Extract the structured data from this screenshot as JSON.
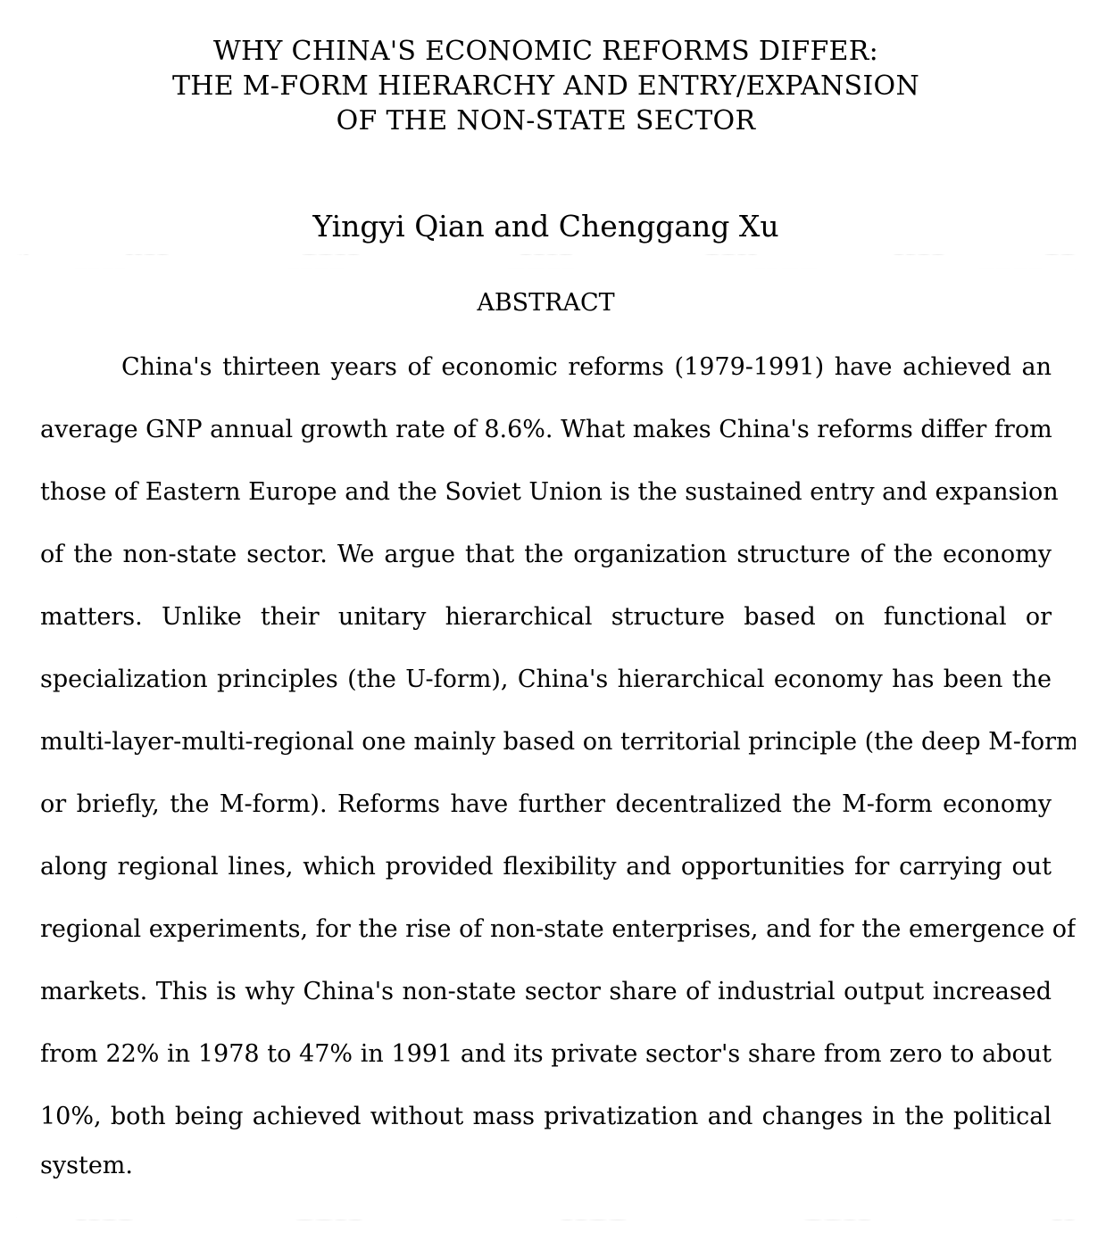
{
  "title_lines": [
    "WHY CHINA'S ECONOMIC REFORMS DIFFER:",
    "THE M-FORM HIERARCHY AND ENTRY/EXPANSION",
    "OF THE NON-STATE SECTOR"
  ],
  "authors": "Yingyi Qian and Chenggang Xu",
  "abstract_heading": "ABSTRACT",
  "abstract_lines": [
    "China's thirteen years of economic reforms (1979-1991) have achieved an",
    "average GNP annual growth rate of 8.6%.  What makes China's reforms differ from",
    "those of Eastern Europe and the Soviet Union is the sustained entry and expansion",
    "of the non-state sector.  We argue that the organization structure of the economy",
    "matters.  Unlike their unitary hierarchical structure based on functional or",
    "specialization principles (the U-form), China's hierarchical economy has been the",
    "multi-layer-multi-regional one mainly based on territorial principle (the deep M-form,",
    "or briefly, the M-form).  Reforms have further decentralized the M-form economy",
    "along regional lines, which provided flexibility and opportunities for carrying out",
    "regional experiments, for the rise of non-state enterprises, and for the emergence of",
    "markets.  This is why China's non-state sector share of industrial output increased",
    "from 22% in 1978 to 47% in 1991 and its private sector's share from zero to about",
    "10%, both being achieved without mass privatization and changes in the political",
    "system."
  ]
}
